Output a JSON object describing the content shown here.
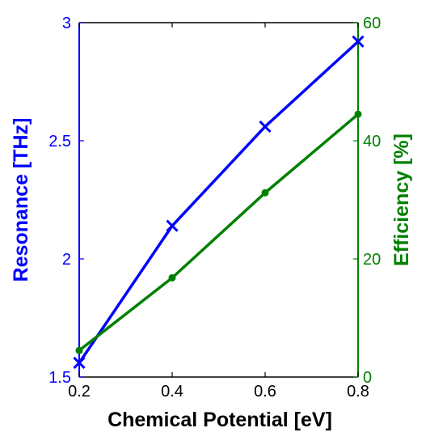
{
  "chart_data": {
    "type": "line",
    "xlabel": "Chemical Potential [eV]",
    "ylabel_left": "Resonance [THz]",
    "ylabel_right": "Efficiency [%]",
    "xlim": [
      0.2,
      0.8
    ],
    "ylim_left": [
      1.5,
      3.0
    ],
    "ylim_right": [
      0,
      60
    ],
    "grid": false,
    "x_ticks": [
      "0.2",
      "0.4",
      "0.6",
      "0.8"
    ],
    "y_left_ticks": [
      "1.5",
      "2",
      "2.5",
      "3"
    ],
    "y_right_ticks": [
      "0",
      "20",
      "40",
      "60"
    ],
    "colors": {
      "left_axis": "#0000ff",
      "right_axis": "#008000",
      "frame": "#000000"
    },
    "series": [
      {
        "axis": "left",
        "marker": "x",
        "color": "#0000ff",
        "x": [
          0.2,
          0.4,
          0.6,
          0.8
        ],
        "values": [
          1.56,
          2.14,
          2.56,
          2.92
        ]
      },
      {
        "axis": "right",
        "marker": "dot",
        "color": "#008000",
        "x": [
          0.2,
          0.4,
          0.6,
          0.8
        ],
        "values": [
          4.5,
          16.8,
          31.2,
          44.5
        ]
      }
    ]
  }
}
